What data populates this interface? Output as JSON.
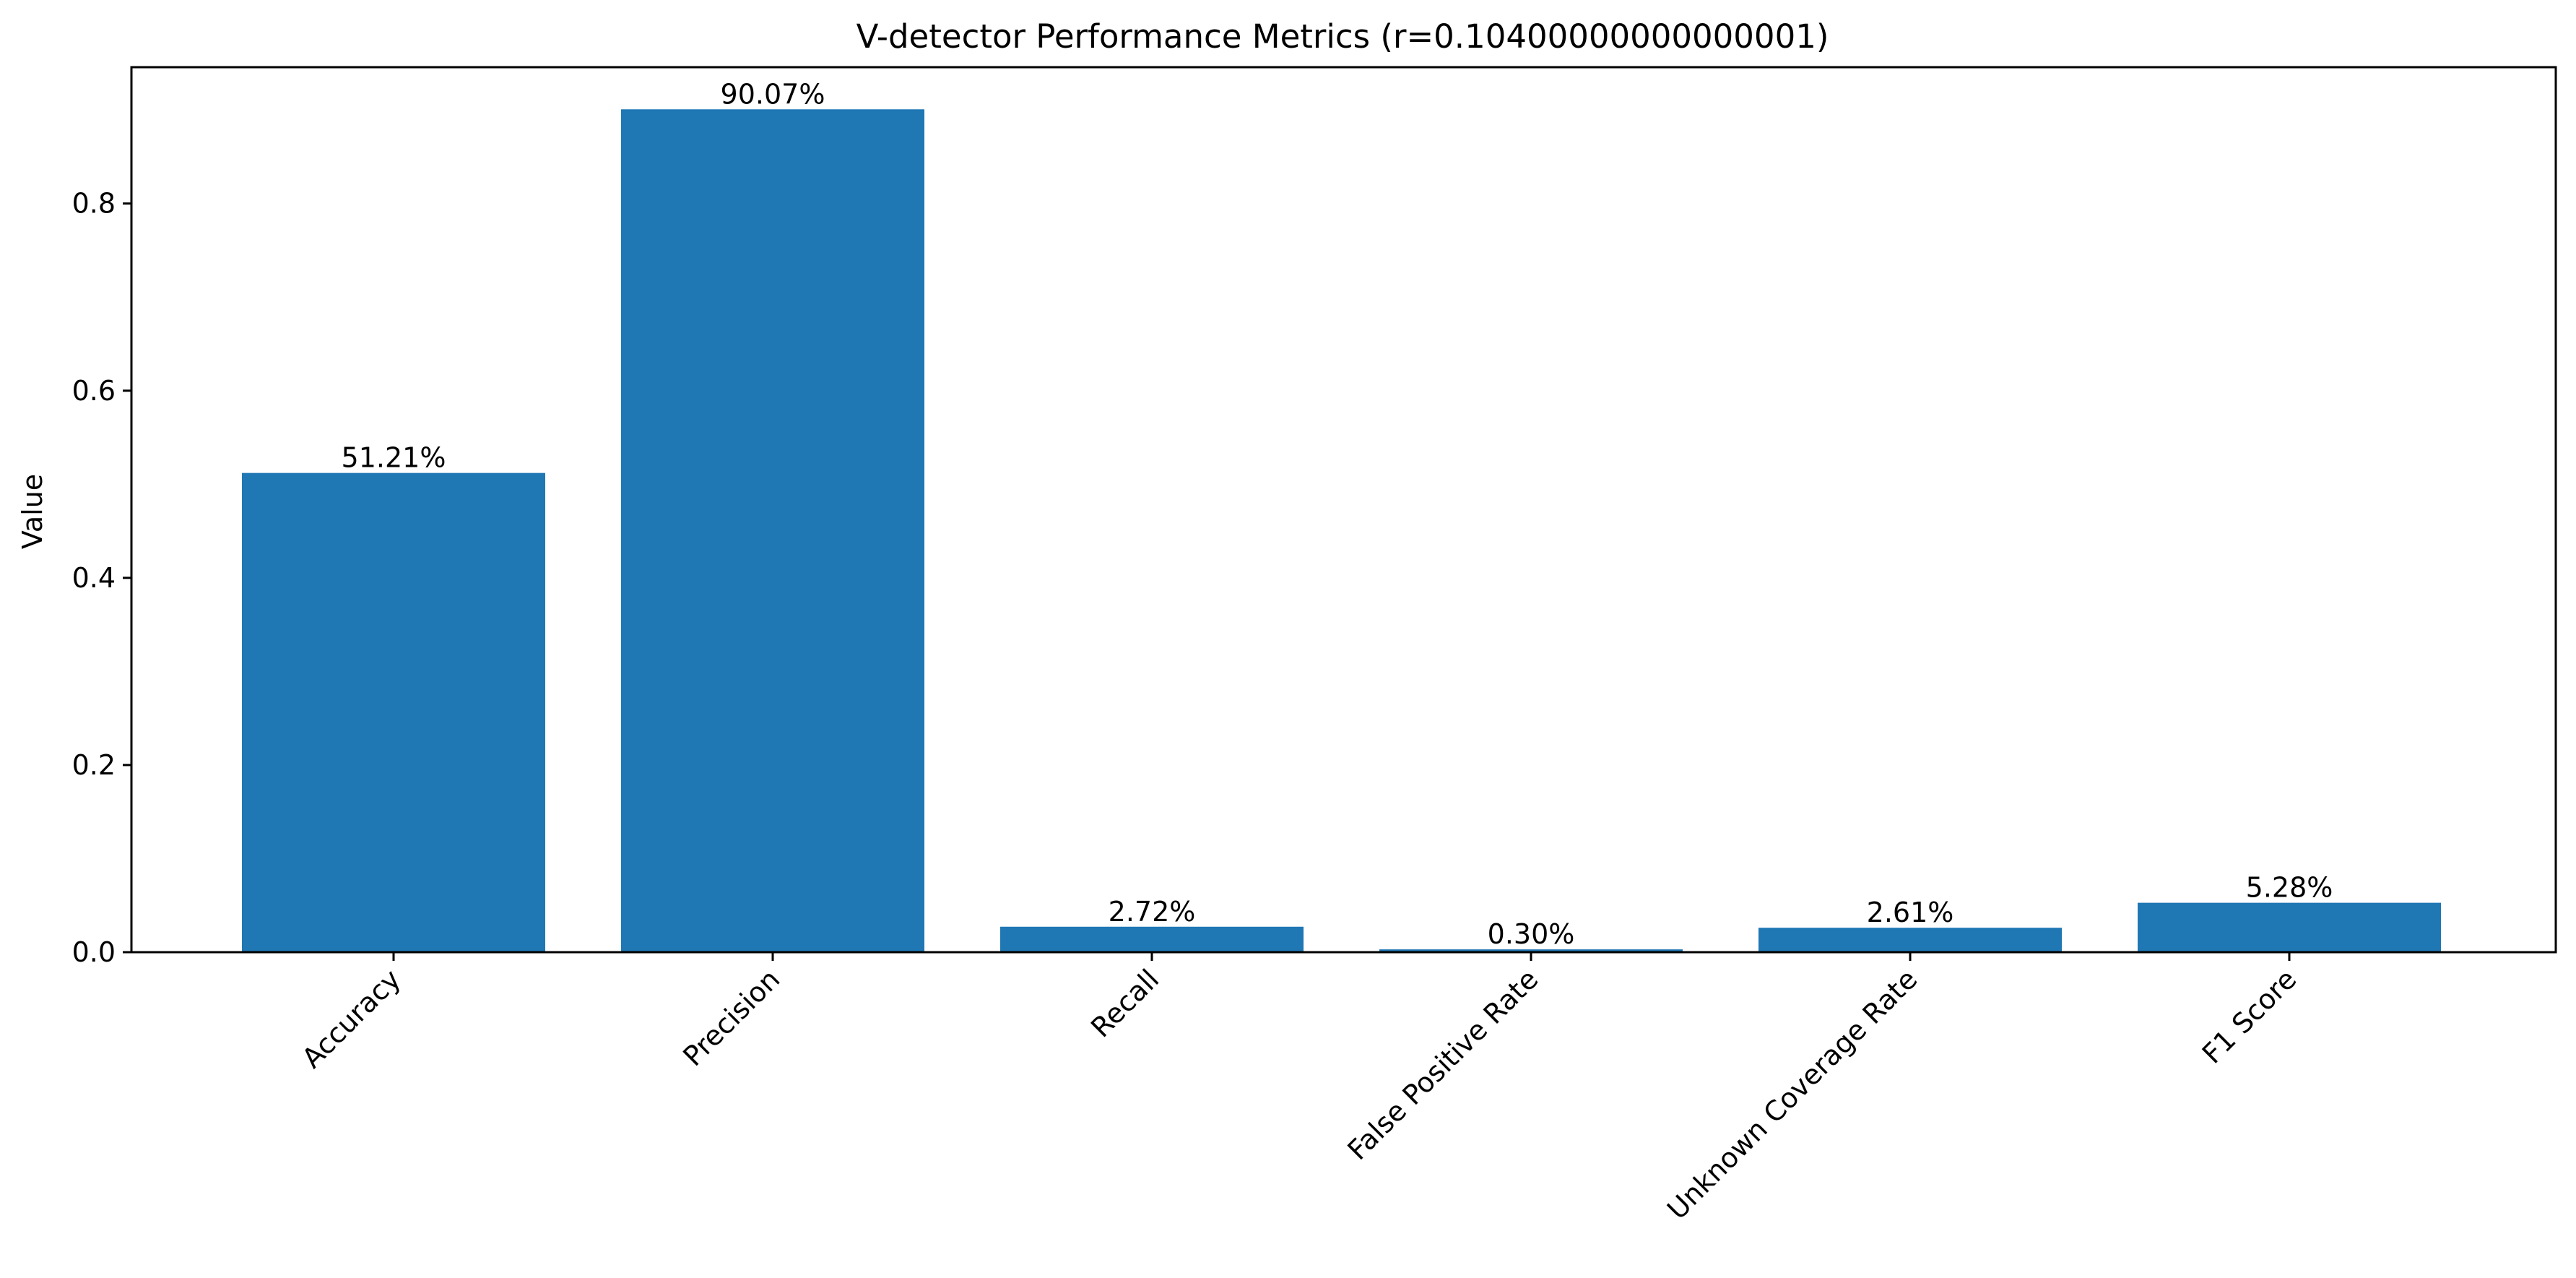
{
  "chart_data": {
    "type": "bar",
    "title": "V-detector Performance Metrics (r=0.10400000000000001)",
    "xlabel": "",
    "ylabel": "Value",
    "categories": [
      "Accuracy",
      "Precision",
      "Recall",
      "False Positive Rate",
      "Unknown Coverage Rate",
      "F1 Score"
    ],
    "values": [
      0.5121,
      0.9007,
      0.0272,
      0.003,
      0.0261,
      0.0528
    ],
    "data_labels": [
      "51.21%",
      "90.07%",
      "2.72%",
      "0.30%",
      "2.61%",
      "5.28%"
    ],
    "ylim": [
      0,
      0.9457
    ],
    "yticks": [
      0.0,
      0.2,
      0.4,
      0.6,
      0.8
    ],
    "ytick_labels": [
      "0.0",
      "0.2",
      "0.4",
      "0.6",
      "0.8"
    ],
    "bar_color": "#1f77b4",
    "grid": false,
    "legend": "none",
    "xtick_rotation": -45
  }
}
